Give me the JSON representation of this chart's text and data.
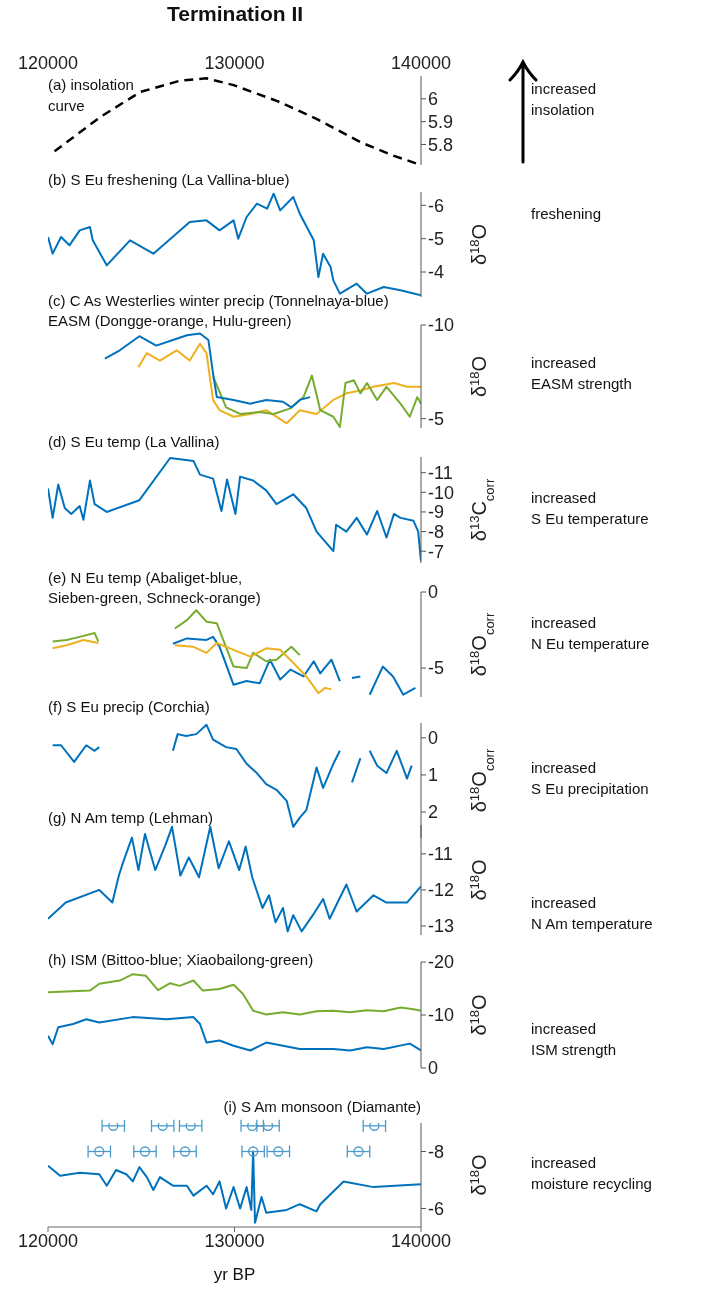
{
  "chart_data": [
    {
      "type": "line",
      "title": "Termination II",
      "xlim": [
        120000,
        140000
      ],
      "xticks": [
        120000,
        130000,
        140000
      ],
      "ylim": [
        5.71,
        6.1
      ],
      "yticks": [
        5.8,
        5.9,
        6
      ],
      "annotations": [
        "(a) insolation\ncurve",
        "increased\ninsolation"
      ],
      "series": [
        {
          "color": "#000000",
          "line_style": "dashed",
          "x": [
            120350,
            122800,
            124950,
            127100,
            128500,
            129950,
            132300,
            134450,
            136750,
            138550,
            140000
          ],
          "values": [
            5.77,
            5.92,
            6.03,
            6.08,
            6.09,
            6.06,
            5.99,
            5.91,
            5.81,
            5.75,
            5.71
          ]
        }
      ]
    },
    {
      "type": "line",
      "title": "(b) S Eu freshening (La Vallina-blue)",
      "xlim": [
        120000,
        140000
      ],
      "xticks": [
        120000,
        130000,
        140000
      ],
      "tick_labels": "y",
      "ylim": [
        -3.25,
        -6.4
      ],
      "yticks": [
        -6,
        -5,
        -4
      ],
      "ylabel": "δ$^{18}$O",
      "annotations": [
        "freshening"
      ],
      "series": [
        {
          "color": "#0072bd",
          "x": [
            120000,
            120250,
            120700,
            121150,
            121700,
            122250,
            122400,
            123150,
            124400,
            125650,
            127600,
            128500,
            129200,
            129950,
            130200,
            130650,
            131200,
            131750,
            132100,
            132450,
            133150,
            133500,
            134250,
            134500,
            134750,
            135150,
            135300,
            135650,
            136550,
            137100,
            138000,
            138900,
            140000
          ],
          "values": [
            -5.05,
            -4.55,
            -5.05,
            -4.8,
            -5.25,
            -5.35,
            -4.95,
            -4.2,
            -4.95,
            -4.55,
            -5.5,
            -5.55,
            -5.25,
            -5.55,
            -5.0,
            -5.65,
            -6.05,
            -5.9,
            -6.35,
            -5.85,
            -6.25,
            -5.75,
            -4.95,
            -3.85,
            -4.55,
            -4.15,
            -3.75,
            -3.35,
            -3.65,
            -3.35,
            -3.55,
            -3.45,
            -3.3
          ]
        }
      ]
    },
    {
      "type": "line",
      "title": "(c) C As Westerlies winter precip (Tonnelnaya-blue)",
      "subtitle": "EASM (Dongge-orange, Hulu-green)",
      "xlim": [
        120000,
        140000
      ],
      "xticks": [
        120000,
        130000,
        140000
      ],
      "tick_labels": "y",
      "ylim": [
        -4.5,
        -10
      ],
      "yticks": [
        -10,
        -5
      ],
      "ylabel": "δ$^{18}$O",
      "annotations": [
        "increased\nEASM strength"
      ],
      "series": [
        {
          "color": "#edb120",
          "x": [
            124850,
            125300,
            126000,
            126900,
            127600,
            128150,
            128500,
            128850,
            129200,
            129950,
            130850,
            131700,
            132800,
            133500,
            134400,
            135300,
            136000,
            136750,
            137450,
            138550,
            139250,
            140000
          ],
          "values": [
            -7.75,
            -8.5,
            -8.1,
            -8.65,
            -8.1,
            -9.0,
            -8.5,
            -6.0,
            -5.45,
            -5.1,
            -5.25,
            -5.45,
            -4.75,
            -5.45,
            -5.25,
            -6.0,
            -6.35,
            -6.5,
            -6.7,
            -6.9,
            -6.7,
            -6.7
          ]
        },
        {
          "color": "#77ac30",
          "x": [
            128850,
            129550,
            130300,
            131350,
            132100,
            133000,
            133700,
            134150,
            134600,
            135300,
            135650,
            135950,
            136400,
            136750,
            137100,
            137650,
            138150,
            138900,
            139400,
            139800,
            140000
          ],
          "values": [
            -7.25,
            -5.6,
            -5.25,
            -5.35,
            -5.25,
            -5.55,
            -6.15,
            -7.3,
            -5.45,
            -5.1,
            -4.55,
            -6.9,
            -7.05,
            -6.35,
            -6.9,
            -6.0,
            -6.7,
            -5.8,
            -5.1,
            -6.15,
            -5.8
          ]
        },
        {
          "color": "#0072bd",
          "x": [
            123050,
            123850,
            124900,
            125800,
            126700,
            127450,
            128150,
            128600,
            128850,
            129050,
            129950,
            130850,
            131700,
            132600,
            133050,
            133500,
            134050
          ],
          "values": [
            -8.2,
            -8.65,
            -9.4,
            -8.9,
            -9.2,
            -9.45,
            -9.55,
            -9.2,
            -7.4,
            -6.15,
            -6.0,
            -5.8,
            -6.0,
            -5.9,
            -5.6,
            -6.0,
            -6.15
          ]
        }
      ]
    },
    {
      "type": "line",
      "title": "(d) S Eu temp (La Vallina)",
      "xlim": [
        120000,
        140000
      ],
      "xticks": [
        120000,
        130000,
        140000
      ],
      "tick_labels": "y",
      "ylim": [
        -6.4,
        -11.8
      ],
      "yticks": [
        -11,
        -10,
        -9,
        -8,
        -7
      ],
      "ylabel": "δ$^{13}$C$_{corr}$",
      "annotations": [
        "increased\nS Eu temperature"
      ],
      "series": [
        {
          "color": "#0072bd",
          "x": [
            120000,
            120250,
            120550,
            120900,
            121250,
            121700,
            121900,
            122250,
            122500,
            123150,
            124900,
            126550,
            127800,
            128150,
            128850,
            129300,
            129600,
            130050,
            130300,
            131000,
            131700,
            132250,
            133150,
            133850,
            134400,
            135300,
            135450,
            136000,
            136550,
            137100,
            137650,
            138150,
            138550,
            138900,
            139600,
            139850,
            140000
          ],
          "values": [
            -10.2,
            -8.7,
            -10.4,
            -9.2,
            -8.9,
            -9.3,
            -8.6,
            -10.6,
            -9.4,
            -9.0,
            -9.6,
            -11.75,
            -11.6,
            -10.9,
            -10.7,
            -9.05,
            -10.65,
            -8.9,
            -10.8,
            -10.6,
            -10.1,
            -9.4,
            -9.9,
            -9.2,
            -8.0,
            -7.0,
            -8.35,
            -8.0,
            -8.7,
            -7.85,
            -9.05,
            -7.7,
            -8.9,
            -8.7,
            -8.55,
            -8.0,
            -6.5
          ]
        }
      ]
    },
    {
      "type": "line",
      "title": "(e) N Eu temp (Abaliget-blue,\nSieben-green, Schneck-orange)",
      "xlim": [
        120000,
        140000
      ],
      "xticks": [
        120000,
        130000,
        140000
      ],
      "tick_labels": "y",
      "ylim": [
        -6.9,
        0
      ],
      "yticks": [
        -5,
        0
      ],
      "ylabel": "δ$^{18}$O$_{corr}$",
      "annotations": [
        "increased\nN Eu temperature"
      ],
      "series": [
        {
          "color": "#0072bd",
          "x": [
            126700,
            127450,
            128500,
            128850,
            129200,
            129950,
            130650,
            131350,
            131900,
            132450,
            133000,
            133700,
            134250,
            134600,
            135200,
            135650,
            135900,
            136300,
            136750,
            136900,
            137250,
            137950,
            138500,
            139050,
            139700
          ],
          "values": [
            -3.4,
            -3.05,
            -3.15,
            -2.95,
            -3.6,
            -6.1,
            -5.85,
            -6.0,
            -4.45,
            -5.75,
            -5.1,
            -5.55,
            -4.55,
            -5.35,
            -4.45,
            -5.85,
            null,
            -5.65,
            -5.55,
            null,
            -6.75,
            -4.9,
            -5.55,
            -6.75,
            -6.3
          ]
        },
        {
          "color": "#77ac30",
          "x": [
            120250,
            121000,
            121700,
            122500,
            122700,
            124000,
            126800,
            127450,
            127950,
            128500,
            129050,
            129950,
            130650,
            131000,
            131700,
            132250,
            133050,
            133500
          ],
          "values": [
            -3.25,
            -3.15,
            -2.95,
            -2.7,
            -3.25,
            null,
            -2.4,
            -1.85,
            -1.2,
            -1.95,
            -2.05,
            -4.9,
            -5.0,
            -4.0,
            -4.55,
            -4.45,
            -3.6,
            -4.15
          ]
        },
        {
          "color": "#edb120",
          "x": [
            120250,
            121000,
            121900,
            122700,
            124000,
            126800,
            127800,
            128500,
            129050,
            129950,
            130850,
            131700,
            132450,
            133150,
            133850,
            134500,
            134850,
            135200
          ],
          "values": [
            -3.7,
            -3.5,
            -3.15,
            -3.35,
            null,
            -3.5,
            -3.6,
            -4.0,
            -3.35,
            -3.8,
            -4.25,
            -3.7,
            -3.8,
            -4.65,
            -5.55,
            -6.65,
            -6.3,
            -6.4
          ]
        }
      ]
    },
    {
      "type": "line",
      "title": "(f) S Eu precip (Corchia)",
      "xlim": [
        120000,
        140000
      ],
      "xticks": [
        120000,
        130000,
        140000
      ],
      "tick_labels": "y",
      "ylim": [
        2.7,
        -0.4
      ],
      "yticks": [
        0,
        1,
        2
      ],
      "ylabel": "δ$^{18}$O$_{corr}$",
      "annotations": [
        "increased\nS Eu precipitation"
      ],
      "series": [
        {
          "color": "#0072bd",
          "x": [
            120250,
            120700,
            121400,
            122050,
            122500,
            122750,
            124000,
            126700,
            126950,
            127400,
            127950,
            128500,
            128850,
            129550,
            130100,
            130650,
            131200,
            131700,
            132250,
            132800,
            133150,
            133500,
            133850,
            134400,
            134750,
            135300,
            135650,
            135900,
            136300,
            136750,
            136900,
            137250,
            137650,
            138150,
            138700,
            139250,
            139500
          ],
          "values": [
            0.2,
            0.2,
            0.65,
            0.2,
            0.35,
            0.25,
            null,
            0.35,
            -0.1,
            -0.05,
            -0.1,
            -0.35,
            0.05,
            0.25,
            0.3,
            0.7,
            0.95,
            1.25,
            1.4,
            1.7,
            2.4,
            2.15,
            1.95,
            0.8,
            1.35,
            0.7,
            0.35,
            null,
            1.2,
            0.55,
            null,
            0.35,
            0.75,
            0.95,
            0.35,
            1.1,
            0.75
          ]
        }
      ]
    },
    {
      "type": "line",
      "title": "(g) N Am temp (Lehman)",
      "xlim": [
        120000,
        140000
      ],
      "xticks": [
        120000,
        130000,
        140000
      ],
      "tick_labels": "y",
      "ylim": [
        -13.25,
        -10.2
      ],
      "yticks": [
        -13,
        -12,
        -11
      ],
      "ylabel": "δ$^{18}$O",
      "annotations": [
        "increased\nN Am temperature"
      ],
      "series": [
        {
          "color": "#0072bd",
          "x": [
            120000,
            120950,
            122750,
            123450,
            123800,
            124050,
            124500,
            124850,
            125200,
            125750,
            126300,
            126650,
            127100,
            127550,
            128100,
            128700,
            129150,
            129700,
            130250,
            130600,
            130950,
            131500,
            131850,
            132200,
            132600,
            132850,
            133150,
            133600,
            134200,
            134750,
            135100,
            136000,
            136550,
            137450,
            138150,
            139250,
            140000
          ],
          "values": [
            -12.8,
            -12.35,
            -12.0,
            -12.35,
            -11.6,
            -11.2,
            -10.55,
            -11.45,
            -10.45,
            -11.45,
            -10.75,
            -10.25,
            -11.6,
            -11.1,
            -11.65,
            -10.25,
            -11.4,
            -10.65,
            -11.45,
            -10.8,
            -11.65,
            -12.5,
            -12.15,
            -12.9,
            -12.5,
            -13.15,
            -12.7,
            -13.15,
            -12.7,
            -12.25,
            -12.8,
            -11.85,
            -12.6,
            -12.15,
            -12.35,
            -12.35,
            -11.9
          ]
        }
      ]
    },
    {
      "type": "line",
      "title": "(h) ISM (Bittoo-blue; Xiaobailong-green)",
      "xlim": [
        120000,
        140000
      ],
      "xticks": [
        120000,
        130000,
        140000
      ],
      "tick_labels": "y",
      "ylim": [
        0,
        -20
      ],
      "yticks": [
        -20,
        -10,
        0
      ],
      "ylabel": "δ$^{18}$O",
      "annotations": [
        "increased\nISM strength"
      ],
      "series": [
        {
          "color": "#77ac30",
          "x": [
            120000,
            122250,
            122750,
            123850,
            124550,
            125250,
            125900,
            126550,
            127050,
            127800,
            128300,
            129200,
            129950,
            130450,
            131000,
            131700,
            132600,
            133500,
            134400,
            135300,
            136200,
            137100,
            138000,
            138900,
            139600,
            140000
          ],
          "values": [
            -14.3,
            -14.6,
            -15.9,
            -16.5,
            -17.7,
            -17.4,
            -14.7,
            -16.0,
            -15.5,
            -16.5,
            -14.6,
            -14.9,
            -15.7,
            -14.0,
            -10.8,
            -10.1,
            -10.5,
            -10.1,
            -10.7,
            -10.8,
            -10.5,
            -10.9,
            -10.7,
            -11.4,
            -11.1,
            -10.8
          ]
        },
        {
          "color": "#0072bd",
          "x": [
            120000,
            120250,
            120550,
            121350,
            122050,
            122750,
            124550,
            126350,
            127800,
            128150,
            128500,
            129200,
            129950,
            130850,
            131700,
            132600,
            133500,
            135300,
            136200,
            137100,
            138000,
            139400,
            140000
          ],
          "values": [
            -6.1,
            -4.5,
            -7.7,
            -8.3,
            -9.2,
            -8.6,
            -9.6,
            -9.2,
            -9.6,
            -8.3,
            -4.8,
            -5.2,
            -4.2,
            -3.3,
            -4.8,
            -4.2,
            -3.6,
            -3.6,
            -3.3,
            -3.9,
            -3.6,
            -4.6,
            -3.3
          ]
        }
      ]
    },
    {
      "type": "line",
      "title": "(i) S Am monsoon (Diamante)",
      "xlabel": "yr BP",
      "xlim": [
        120000,
        140000
      ],
      "xticks": [
        120000,
        130000,
        140000
      ],
      "ylim": [
        -5.35,
        -9.0
      ],
      "yticks": [
        -8,
        -6
      ],
      "ylabel": "δ$^{18}$O",
      "annotations": [
        "increased\nmoisture recycling"
      ],
      "series": [
        {
          "color": "#0072bd",
          "x": [
            120000,
            120650,
            121700,
            122750,
            123150,
            123650,
            124200,
            124550,
            124900,
            125300,
            125650,
            126000,
            126700,
            127450,
            127800,
            128500,
            128850,
            129200,
            129550,
            129950,
            130300,
            130650,
            130900,
            131000,
            131100,
            131450,
            131700,
            132800,
            133500,
            134400,
            134600,
            135850,
            137450,
            140000
          ],
          "values": [
            -7.5,
            -7.15,
            -7.25,
            -7.2,
            -6.8,
            -7.35,
            -7.2,
            -6.95,
            -7.45,
            -7.1,
            -6.65,
            -7.1,
            -6.8,
            -6.8,
            -6.45,
            -6.8,
            -6.5,
            -6.95,
            -6.0,
            -6.75,
            -6.0,
            -6.75,
            -5.95,
            -8.0,
            -5.5,
            -6.4,
            -5.85,
            -5.95,
            -6.15,
            -5.9,
            -6.15,
            -6.95,
            -6.75,
            -6.85
          ]
        },
        {
          "type": "scatter",
          "marker": "circle",
          "color": "#4a9acb",
          "x": [
            122750,
            123500,
            125200,
            126150,
            127350,
            127650,
            130950,
            131000,
            131800,
            132350,
            136650,
            137500
          ],
          "values": [
            -8,
            -8.9,
            -8,
            -8.9,
            -8,
            -8.9,
            -8.9,
            -8,
            -8.9,
            -8,
            -8,
            -8.9
          ],
          "xerrors": [
            600,
            600,
            600,
            600,
            600,
            600,
            600,
            600,
            600,
            600,
            600,
            600
          ]
        }
      ]
    }
  ]
}
